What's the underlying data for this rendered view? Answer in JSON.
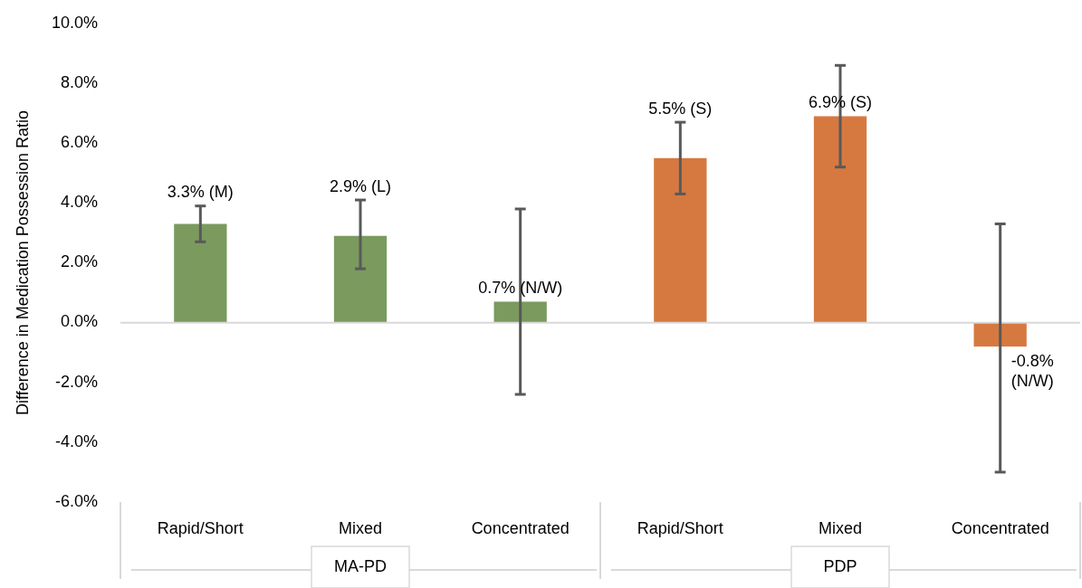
{
  "chart_data": {
    "type": "bar",
    "ylabel": "Difference in Medication Possession Ratio",
    "categories": [
      "Rapid/Short",
      "Mixed",
      "Concentrated",
      "Rapid/Short",
      "Mixed",
      "Concentrated"
    ],
    "values": [
      3.3,
      2.9,
      0.7,
      5.5,
      6.9,
      -0.8
    ],
    "colors": [
      "#7a9a5e",
      "#7a9a5e",
      "#7a9a5e",
      "#d67940",
      "#d67940",
      "#d67940"
    ],
    "errors": [
      [
        2.7,
        3.9
      ],
      [
        1.8,
        4.1
      ],
      [
        -2.4,
        3.8
      ],
      [
        4.3,
        6.7
      ],
      [
        5.2,
        8.6
      ],
      [
        -5.0,
        3.3
      ]
    ],
    "value_labels": [
      "3.3% (M)",
      "2.9% (L)",
      "0.7% (N/W)",
      "5.5% (S)",
      "6.9% (S)",
      "-0.8% (N/W)"
    ],
    "ylim": [
      -6,
      10
    ],
    "yticks": [
      {
        "value": -6,
        "label": "-6.0%"
      },
      {
        "value": -4,
        "label": "-4.0%"
      },
      {
        "value": -2,
        "label": "-2.0%"
      },
      {
        "value": 0,
        "label": "0.0%"
      },
      {
        "value": 2,
        "label": "2.0%"
      },
      {
        "value": 4,
        "label": "4.0%"
      },
      {
        "value": 6,
        "label": "6.0%"
      },
      {
        "value": 8,
        "label": "8.0%"
      },
      {
        "value": 10,
        "label": "10.0%"
      }
    ],
    "annotations": [
      "MA-PD",
      "PDP"
    ]
  }
}
